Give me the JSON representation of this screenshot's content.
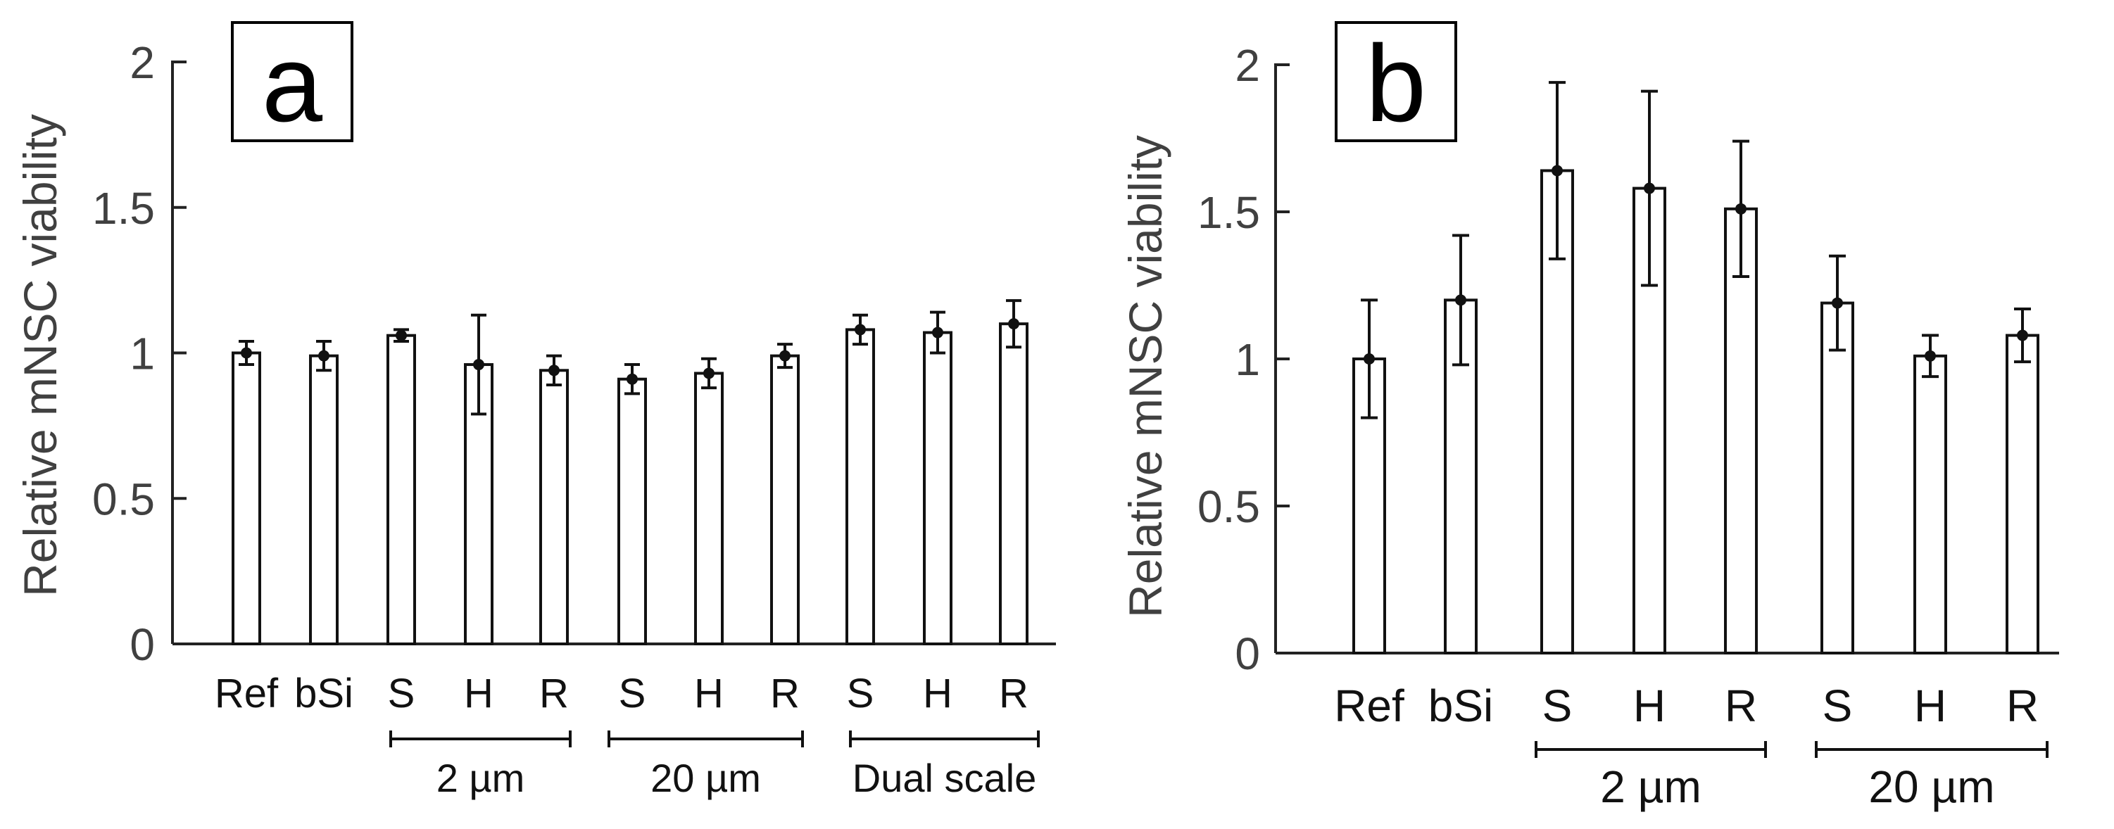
{
  "chart_data": [
    {
      "type": "bar",
      "panel_label": "a",
      "ylabel": "Relative mNSC viability",
      "ylim": [
        0,
        2
      ],
      "yticks": [
        "0",
        "0.5",
        "1",
        "1.5",
        "2"
      ],
      "categories": [
        "Ref",
        "bSi",
        "S",
        "H",
        "R",
        "S",
        "H",
        "R",
        "S",
        "H",
        "R"
      ],
      "values": [
        1.0,
        0.99,
        1.06,
        0.96,
        0.94,
        0.91,
        0.93,
        0.99,
        1.08,
        1.07,
        1.1
      ],
      "errors": [
        0.04,
        0.05,
        0.02,
        0.17,
        0.05,
        0.05,
        0.05,
        0.04,
        0.05,
        0.07,
        0.08
      ],
      "groups": [
        {
          "label": "2 µm",
          "from": 2,
          "to": 4
        },
        {
          "label": "20 µm",
          "from": 5,
          "to": 7
        },
        {
          "label": "Dual scale",
          "from": 8,
          "to": 10
        }
      ]
    },
    {
      "type": "bar",
      "panel_label": "b",
      "ylabel": "Relative mNSC viability",
      "ylim": [
        0,
        2
      ],
      "yticks": [
        "0",
        "0.5",
        "1",
        "1.5",
        "2"
      ],
      "categories": [
        "Ref",
        "bSi",
        "S",
        "H",
        "R",
        "S",
        "H",
        "R"
      ],
      "values": [
        1.0,
        1.2,
        1.64,
        1.58,
        1.51,
        1.19,
        1.01,
        1.08
      ],
      "errors": [
        0.2,
        0.22,
        0.3,
        0.33,
        0.23,
        0.16,
        0.07,
        0.09
      ],
      "groups": [
        {
          "label": "2 µm",
          "from": 2,
          "to": 4
        },
        {
          "label": "20 µm",
          "from": 5,
          "to": 7
        }
      ]
    }
  ]
}
